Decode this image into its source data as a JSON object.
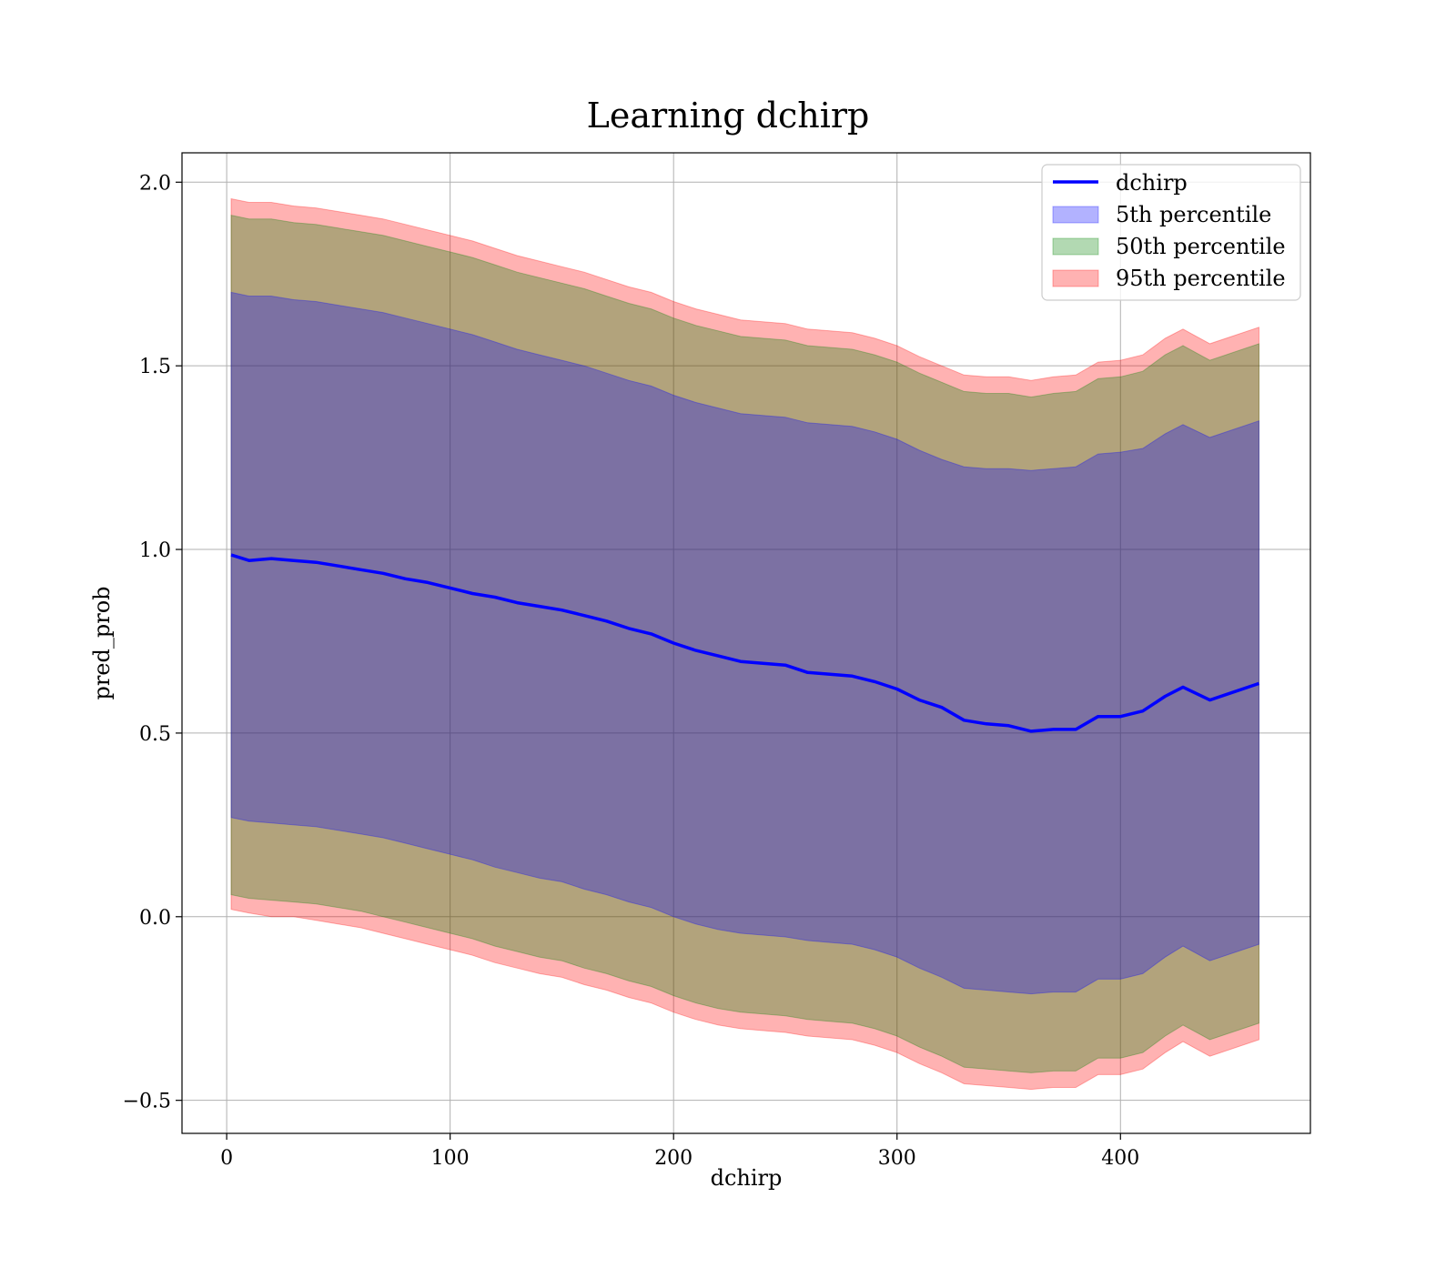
{
  "chart_data": {
    "type": "area",
    "title": "Learning dchirp",
    "xlabel": "dchirp",
    "ylabel": "pred_prob",
    "xlim": [
      -20,
      485
    ],
    "ylim": [
      -0.59,
      2.08
    ],
    "x_ticks": [
      0,
      100,
      200,
      300,
      400
    ],
    "x_tick_labels": [
      "0",
      "100",
      "200",
      "300",
      "400"
    ],
    "y_ticks": [
      -0.5,
      0.0,
      0.5,
      1.0,
      1.5,
      2.0
    ],
    "y_tick_labels": [
      "−0.5",
      "0.0",
      "0.5",
      "1.0",
      "1.5",
      "2.0"
    ],
    "grid": true,
    "legend_position": "top-right",
    "x": [
      2,
      10,
      20,
      30,
      40,
      50,
      60,
      70,
      80,
      90,
      100,
      110,
      120,
      130,
      140,
      150,
      160,
      170,
      180,
      190,
      200,
      210,
      220,
      230,
      240,
      250,
      260,
      270,
      280,
      290,
      300,
      310,
      320,
      330,
      340,
      350,
      360,
      370,
      380,
      390,
      400,
      410,
      420,
      428,
      440,
      462
    ],
    "line": {
      "name": "dchirp",
      "color": "#0000ff",
      "values": [
        0.985,
        0.97,
        0.975,
        0.97,
        0.965,
        0.955,
        0.945,
        0.935,
        0.92,
        0.91,
        0.895,
        0.88,
        0.87,
        0.855,
        0.845,
        0.835,
        0.82,
        0.805,
        0.785,
        0.77,
        0.745,
        0.725,
        0.71,
        0.695,
        0.69,
        0.685,
        0.665,
        0.66,
        0.655,
        0.64,
        0.62,
        0.59,
        0.57,
        0.535,
        0.525,
        0.52,
        0.505,
        0.51,
        0.51,
        0.545,
        0.545,
        0.56,
        0.6,
        0.625,
        0.59,
        0.635
      ]
    },
    "bands": [
      {
        "name": "95th percentile",
        "color": "#ff0000",
        "opacity": 0.3,
        "lower": [
          0.02,
          0.01,
          0.0,
          0.0,
          -0.01,
          -0.02,
          -0.03,
          -0.045,
          -0.06,
          -0.075,
          -0.09,
          -0.105,
          -0.125,
          -0.14,
          -0.155,
          -0.165,
          -0.185,
          -0.2,
          -0.22,
          -0.235,
          -0.26,
          -0.28,
          -0.295,
          -0.305,
          -0.31,
          -0.315,
          -0.325,
          -0.33,
          -0.335,
          -0.35,
          -0.37,
          -0.4,
          -0.425,
          -0.455,
          -0.46,
          -0.465,
          -0.47,
          -0.465,
          -0.465,
          -0.43,
          -0.43,
          -0.415,
          -0.37,
          -0.34,
          -0.38,
          -0.335
        ],
        "upper": [
          1.955,
          1.945,
          1.945,
          1.935,
          1.93,
          1.92,
          1.91,
          1.9,
          1.885,
          1.87,
          1.855,
          1.84,
          1.82,
          1.8,
          1.785,
          1.77,
          1.755,
          1.735,
          1.715,
          1.7,
          1.675,
          1.655,
          1.64,
          1.625,
          1.62,
          1.615,
          1.6,
          1.595,
          1.59,
          1.575,
          1.555,
          1.525,
          1.5,
          1.475,
          1.47,
          1.47,
          1.46,
          1.47,
          1.475,
          1.51,
          1.515,
          1.53,
          1.575,
          1.6,
          1.56,
          1.605
        ]
      },
      {
        "name": "50th percentile",
        "color": "#008000",
        "opacity": 0.3,
        "lower": [
          0.06,
          0.05,
          0.045,
          0.04,
          0.035,
          0.025,
          0.015,
          0.0,
          -0.015,
          -0.03,
          -0.045,
          -0.06,
          -0.08,
          -0.095,
          -0.11,
          -0.12,
          -0.14,
          -0.155,
          -0.175,
          -0.19,
          -0.215,
          -0.235,
          -0.25,
          -0.26,
          -0.265,
          -0.27,
          -0.28,
          -0.285,
          -0.29,
          -0.305,
          -0.325,
          -0.355,
          -0.38,
          -0.41,
          -0.415,
          -0.42,
          -0.425,
          -0.42,
          -0.42,
          -0.385,
          -0.385,
          -0.37,
          -0.325,
          -0.295,
          -0.335,
          -0.29
        ],
        "upper": [
          1.91,
          1.9,
          1.9,
          1.89,
          1.885,
          1.875,
          1.865,
          1.855,
          1.84,
          1.825,
          1.81,
          1.795,
          1.775,
          1.755,
          1.74,
          1.725,
          1.71,
          1.69,
          1.67,
          1.655,
          1.63,
          1.61,
          1.595,
          1.58,
          1.575,
          1.57,
          1.555,
          1.55,
          1.545,
          1.53,
          1.51,
          1.48,
          1.455,
          1.43,
          1.425,
          1.425,
          1.415,
          1.425,
          1.43,
          1.465,
          1.47,
          1.485,
          1.53,
          1.555,
          1.515,
          1.56
        ]
      },
      {
        "name": "5th percentile",
        "color": "#0000ff",
        "opacity": 0.3,
        "lower": [
          0.27,
          0.26,
          0.255,
          0.25,
          0.245,
          0.235,
          0.225,
          0.215,
          0.2,
          0.185,
          0.17,
          0.155,
          0.135,
          0.12,
          0.105,
          0.095,
          0.075,
          0.06,
          0.04,
          0.025,
          0.0,
          -0.02,
          -0.035,
          -0.045,
          -0.05,
          -0.055,
          -0.065,
          -0.07,
          -0.075,
          -0.09,
          -0.11,
          -0.14,
          -0.165,
          -0.195,
          -0.2,
          -0.205,
          -0.21,
          -0.205,
          -0.205,
          -0.17,
          -0.17,
          -0.155,
          -0.11,
          -0.08,
          -0.12,
          -0.075
        ],
        "upper": [
          1.7,
          1.69,
          1.69,
          1.68,
          1.675,
          1.665,
          1.655,
          1.645,
          1.63,
          1.615,
          1.6,
          1.585,
          1.565,
          1.545,
          1.53,
          1.515,
          1.5,
          1.48,
          1.46,
          1.445,
          1.42,
          1.4,
          1.385,
          1.37,
          1.365,
          1.36,
          1.345,
          1.34,
          1.335,
          1.32,
          1.3,
          1.27,
          1.245,
          1.225,
          1.22,
          1.22,
          1.215,
          1.22,
          1.225,
          1.26,
          1.265,
          1.275,
          1.315,
          1.34,
          1.305,
          1.35
        ]
      }
    ],
    "legend": [
      {
        "label": "dchirp",
        "kind": "line",
        "color": "#0000ff"
      },
      {
        "label": "5th percentile",
        "kind": "patch",
        "color": "#0000ff"
      },
      {
        "label": "50th percentile",
        "kind": "patch",
        "color": "#008000"
      },
      {
        "label": "95th percentile",
        "kind": "patch",
        "color": "#ff0000"
      }
    ]
  }
}
